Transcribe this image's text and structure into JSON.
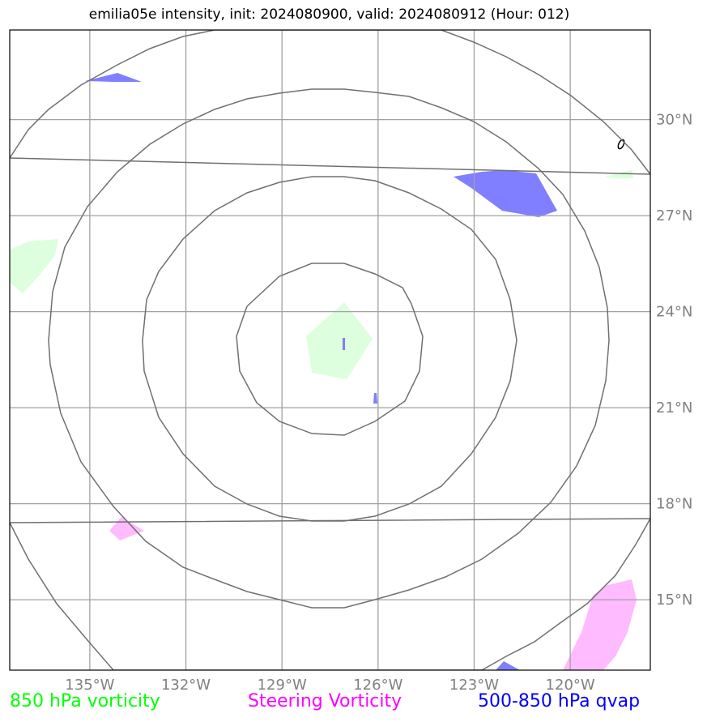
{
  "title": "emilia05e intensity, init: 2024080900, valid: 2024080912 (Hour: 012)",
  "map": {
    "lon_ticks": [
      "135°W",
      "132°W",
      "129°W",
      "126°W",
      "123°W",
      "120°W"
    ],
    "lat_ticks": [
      "30°N",
      "27°N",
      "24°N",
      "21°N",
      "18°N",
      "15°N"
    ],
    "lon_range": [
      -137.5,
      -117.5
    ],
    "lat_range": [
      12.8,
      32.8
    ],
    "range_rings": 5
  },
  "legend": {
    "vort850": {
      "label": "850 hPa vorticity",
      "color": "#00ff00"
    },
    "steering": {
      "label": "Steering Vorticity",
      "color": "#ff00ff"
    },
    "qvap": {
      "label": "500-850 hPa qvap",
      "color": "#0000ff"
    }
  },
  "colors": {
    "vort850_fill": "#ddffdd",
    "steering_fill": "#ffbbff",
    "qvap_fill": "#7f7fff",
    "grid": "#a0a0a0",
    "ring": "#707070"
  }
}
